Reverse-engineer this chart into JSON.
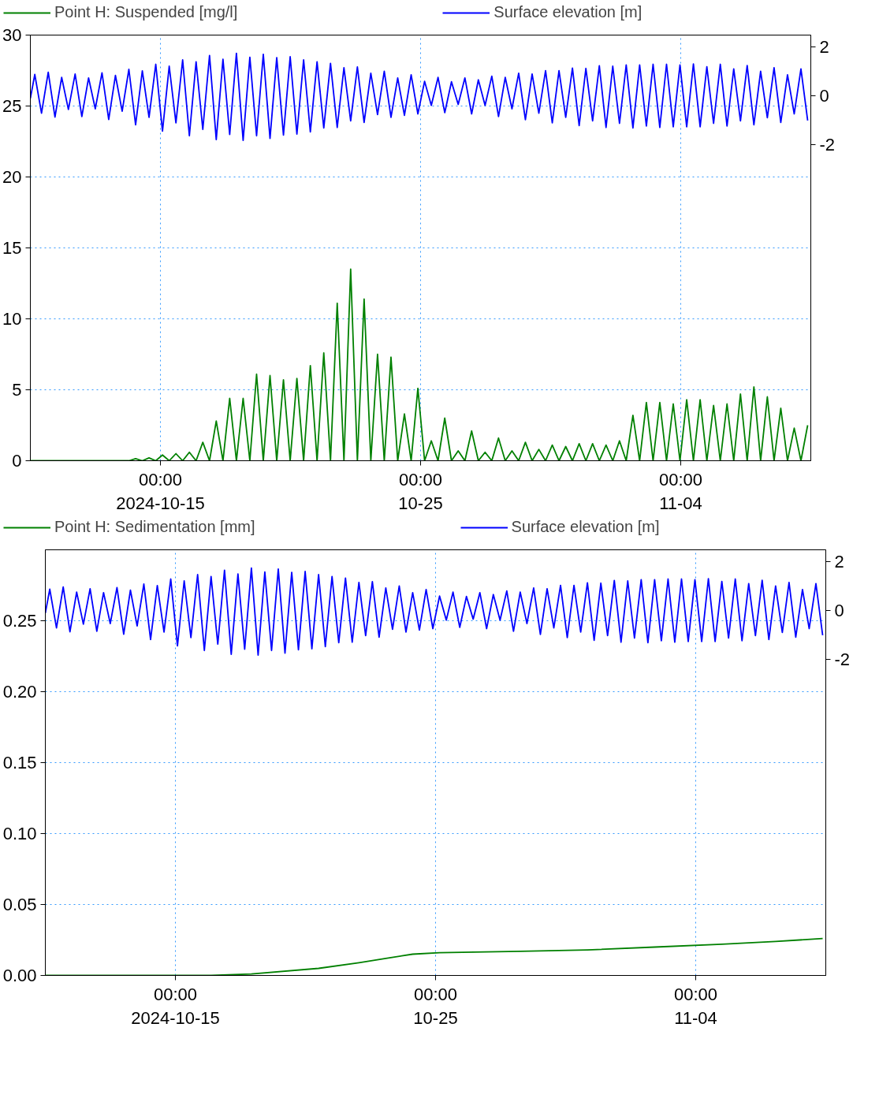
{
  "chart_data": [
    {
      "type": "line",
      "grid": true,
      "legend": "top",
      "x": [
        "2024-10-10T00:00",
        "2024-10-10T04:06",
        "2024-10-10T10:18",
        "2024-10-10T16:30",
        "2024-10-10T22:42",
        "2024-10-11T04:54",
        "2024-10-11T11:06",
        "2024-10-11T17:18",
        "2024-10-11T23:30",
        "2024-10-12T05:42",
        "2024-10-12T11:54",
        "2024-10-12T18:06",
        "2024-10-13T00:18",
        "2024-10-13T06:30",
        "2024-10-13T12:42",
        "2024-10-13T18:54",
        "2024-10-14T01:06",
        "2024-10-14T07:18",
        "2024-10-14T13:30",
        "2024-10-14T19:42",
        "2024-10-15T01:54",
        "2024-10-15T08:06",
        "2024-10-15T14:18",
        "2024-10-15T20:30",
        "2024-10-16T02:42",
        "2024-10-16T08:54",
        "2024-10-16T15:06",
        "2024-10-16T21:18",
        "2024-10-17T03:30",
        "2024-10-17T09:42",
        "2024-10-17T15:54",
        "2024-10-17T22:06",
        "2024-10-18T04:18",
        "2024-10-18T10:30",
        "2024-10-18T16:42",
        "2024-10-18T22:54",
        "2024-10-19T05:06",
        "2024-10-19T11:18",
        "2024-10-19T17:30",
        "2024-10-19T23:42",
        "2024-10-20T05:54",
        "2024-10-20T12:06",
        "2024-10-20T18:18",
        "2024-10-21T00:30",
        "2024-10-21T06:42",
        "2024-10-21T12:54",
        "2024-10-21T19:06",
        "2024-10-22T01:18",
        "2024-10-22T07:30",
        "2024-10-22T13:42",
        "2024-10-22T19:54",
        "2024-10-23T02:06",
        "2024-10-23T08:18",
        "2024-10-23T14:30",
        "2024-10-23T20:42",
        "2024-10-24T02:54",
        "2024-10-24T09:06",
        "2024-10-24T15:18",
        "2024-10-24T21:30",
        "2024-10-25T03:42",
        "2024-10-25T09:54",
        "2024-10-25T16:06",
        "2024-10-25T22:18",
        "2024-10-26T04:30",
        "2024-10-26T10:42",
        "2024-10-26T16:54",
        "2024-10-26T23:06",
        "2024-10-27T05:18",
        "2024-10-27T11:30",
        "2024-10-27T17:42",
        "2024-10-27T23:54",
        "2024-10-28T06:06",
        "2024-10-28T12:18",
        "2024-10-28T18:30",
        "2024-10-29T00:42",
        "2024-10-29T06:54",
        "2024-10-29T13:06",
        "2024-10-29T19:18",
        "2024-10-30T01:30",
        "2024-10-30T07:42",
        "2024-10-30T13:54",
        "2024-10-30T20:06",
        "2024-10-31T02:18",
        "2024-10-31T08:30",
        "2024-10-31T14:42",
        "2024-10-31T20:54",
        "2024-11-01T03:06",
        "2024-11-01T09:18",
        "2024-11-01T15:30",
        "2024-11-01T21:42",
        "2024-11-02T03:54",
        "2024-11-02T10:06",
        "2024-11-02T16:18",
        "2024-11-02T22:30",
        "2024-11-03T04:42",
        "2024-11-03T10:54",
        "2024-11-03T17:06",
        "2024-11-03T23:18",
        "2024-11-04T05:30",
        "2024-11-04T11:42",
        "2024-11-04T17:54",
        "2024-11-05T00:06",
        "2024-11-05T06:18",
        "2024-11-05T12:30",
        "2024-11-05T18:42",
        "2024-11-06T00:54",
        "2024-11-06T07:06",
        "2024-11-06T13:18",
        "2024-11-06T19:30",
        "2024-11-07T01:42",
        "2024-11-07T07:54",
        "2024-11-07T14:06",
        "2024-11-07T20:18",
        "2024-11-08T02:30",
        "2024-11-08T08:42",
        "2024-11-08T14:54",
        "2024-11-08T21:06"
      ],
      "xlim": [
        "2024-10-10",
        "2024-11-09"
      ],
      "xticks": [
        {
          "value": "2024-10-15",
          "label": "00:00\n2024-10-15"
        },
        {
          "value": "2024-10-25",
          "label": "00:00\n10-25"
        },
        {
          "value": "2024-11-04",
          "label": "00:00\n11-04"
        }
      ],
      "ylim": [
        0,
        30
      ],
      "yticks": [
        0,
        5,
        10,
        15,
        20,
        25,
        30
      ],
      "y2lim": [
        -15,
        2.5
      ],
      "y2ticks": [
        -2,
        0,
        2
      ],
      "series": [
        {
          "name": "Point H: Suspended [mg/l]",
          "color": "#008000",
          "values": [
            0,
            0,
            0,
            0,
            0,
            0,
            0,
            0,
            0,
            0,
            0,
            0,
            0,
            0,
            0,
            0,
            0.15,
            0,
            0.2,
            0,
            0.4,
            0,
            0.5,
            0,
            0.6,
            0,
            1.3,
            0,
            2.8,
            0,
            4.4,
            0,
            4.4,
            0,
            6.1,
            0,
            6.0,
            0,
            5.7,
            0,
            5.8,
            0,
            6.7,
            0,
            7.6,
            0,
            11.1,
            0,
            13.5,
            0,
            11.4,
            0,
            7.5,
            0,
            7.3,
            0,
            3.3,
            0,
            5.1,
            0,
            1.4,
            0,
            3.0,
            0,
            0.7,
            0,
            2.1,
            0,
            0.6,
            0,
            1.6,
            0,
            0.7,
            0,
            1.3,
            0,
            0.8,
            0,
            1.1,
            0,
            1.0,
            0,
            1.2,
            0,
            1.2,
            0,
            1.1,
            0,
            1.4,
            0,
            3.2,
            0,
            4.1,
            0,
            4.1,
            0,
            4.0,
            0,
            4.3,
            0,
            4.3,
            0,
            3.9,
            0,
            4.0,
            0,
            4.7,
            0,
            5.2,
            0,
            4.5,
            0,
            3.7,
            0,
            2.3,
            0,
            2.5
          ]
        },
        {
          "name": "Surface elevation [m]",
          "color": "#0000ff",
          "axis": "y2",
          "values": [
            -0.1,
            0.88,
            -0.71,
            0.97,
            -0.87,
            0.76,
            -0.56,
            0.9,
            -0.85,
            0.74,
            -0.53,
            0.95,
            -0.97,
            0.84,
            -0.63,
            1.09,
            -1.19,
            1.03,
            -0.88,
            1.3,
            -1.45,
            1.22,
            -1.11,
            1.48,
            -1.64,
            1.4,
            -1.38,
            1.66,
            -1.8,
            1.51,
            -1.59,
            1.75,
            -1.83,
            1.59,
            -1.64,
            1.71,
            -1.75,
            1.57,
            -1.61,
            1.61,
            -1.57,
            1.48,
            -1.48,
            1.4,
            -1.32,
            1.34,
            -1.3,
            1.16,
            -1.03,
            1.19,
            -1.09,
            0.93,
            -0.77,
            1.01,
            -0.88,
            0.74,
            -0.8,
            0.87,
            -0.74,
            0.6,
            -0.39,
            0.76,
            -0.69,
            0.58,
            -0.35,
            0.74,
            -0.74,
            0.66,
            -0.39,
            0.81,
            -0.85,
            0.76,
            -0.53,
            0.93,
            -0.98,
            0.9,
            -0.71,
            1.04,
            -1.11,
            1.04,
            -0.88,
            1.14,
            -1.22,
            1.13,
            -1.03,
            1.24,
            -1.3,
            1.22,
            -1.13,
            1.27,
            -1.32,
            1.27,
            -1.24,
            1.3,
            -1.3,
            1.3,
            -1.27,
            1.27,
            -1.27,
            1.31,
            -1.27,
            1.2,
            -1.13,
            1.3,
            -1.24,
            1.11,
            -1.03,
            1.25,
            -1.19,
            1.01,
            -0.9,
            1.16,
            -1.09,
            0.87,
            -0.74,
            1.11,
            -1.01
          ]
        }
      ]
    },
    {
      "type": "line",
      "grid": true,
      "legend": "top",
      "x": [
        "2024-10-10T00:00",
        "2024-10-10T04:06",
        "2024-10-10T10:18",
        "2024-10-10T16:30",
        "2024-10-10T22:42",
        "2024-10-11T04:54",
        "2024-10-11T11:06",
        "2024-10-11T17:18",
        "2024-10-11T23:30",
        "2024-10-12T05:42",
        "2024-10-12T11:54",
        "2024-10-12T18:06",
        "2024-10-13T00:18",
        "2024-10-13T06:30",
        "2024-10-13T12:42",
        "2024-10-13T18:54",
        "2024-10-14T01:06",
        "2024-10-14T07:18",
        "2024-10-14T13:30",
        "2024-10-14T19:42",
        "2024-10-15T01:54",
        "2024-10-15T08:06",
        "2024-10-15T14:18",
        "2024-10-15T20:30",
        "2024-10-16T02:42",
        "2024-10-16T08:54",
        "2024-10-16T15:06",
        "2024-10-16T21:18",
        "2024-10-17T03:30",
        "2024-10-17T09:42",
        "2024-10-17T15:54",
        "2024-10-17T22:06",
        "2024-10-18T04:18",
        "2024-10-18T10:30",
        "2024-10-18T16:42",
        "2024-10-18T22:54",
        "2024-10-19T05:06",
        "2024-10-19T11:18",
        "2024-10-19T17:30",
        "2024-10-19T23:42",
        "2024-10-20T05:54",
        "2024-10-20T12:06",
        "2024-10-20T18:18",
        "2024-10-21T00:30",
        "2024-10-21T06:42",
        "2024-10-21T12:54",
        "2024-10-21T19:06",
        "2024-10-22T01:18",
        "2024-10-22T07:30",
        "2024-10-22T13:42",
        "2024-10-22T19:54",
        "2024-10-23T02:06",
        "2024-10-23T08:18",
        "2024-10-23T14:30",
        "2024-10-23T20:42",
        "2024-10-24T02:54",
        "2024-10-24T09:06",
        "2024-10-24T15:18",
        "2024-10-24T21:30",
        "2024-10-25T03:42",
        "2024-10-25T09:54",
        "2024-10-25T16:06",
        "2024-10-25T22:18",
        "2024-10-26T04:30",
        "2024-10-26T10:42",
        "2024-10-26T16:54",
        "2024-10-26T23:06",
        "2024-10-27T05:18",
        "2024-10-27T11:30",
        "2024-10-27T17:42",
        "2024-10-27T23:54",
        "2024-10-28T06:06",
        "2024-10-28T12:18",
        "2024-10-28T18:30",
        "2024-10-29T00:42",
        "2024-10-29T06:54",
        "2024-10-29T13:06",
        "2024-10-29T19:18",
        "2024-10-30T01:30",
        "2024-10-30T07:42",
        "2024-10-30T13:54",
        "2024-10-30T20:06",
        "2024-10-31T02:18",
        "2024-10-31T08:30",
        "2024-10-31T14:42",
        "2024-10-31T20:54",
        "2024-11-01T03:06",
        "2024-11-01T09:18",
        "2024-11-01T15:30",
        "2024-11-01T21:42",
        "2024-11-02T03:54",
        "2024-11-02T10:06",
        "2024-11-02T16:18",
        "2024-11-02T22:30",
        "2024-11-03T04:42",
        "2024-11-03T10:54",
        "2024-11-03T17:06",
        "2024-11-03T23:18",
        "2024-11-04T05:30",
        "2024-11-04T11:42",
        "2024-11-04T17:54",
        "2024-11-05T00:06",
        "2024-11-05T06:18",
        "2024-11-05T12:30",
        "2024-11-05T18:42",
        "2024-11-06T00:54",
        "2024-11-06T07:06",
        "2024-11-06T13:18",
        "2024-11-06T19:30",
        "2024-11-07T01:42",
        "2024-11-07T07:54",
        "2024-11-07T14:06",
        "2024-11-07T20:18",
        "2024-11-08T02:30",
        "2024-11-08T08:42",
        "2024-11-08T14:54",
        "2024-11-08T21:06"
      ],
      "xlim": [
        "2024-10-10",
        "2024-11-09"
      ],
      "xticks": [
        {
          "value": "2024-10-15",
          "label": "00:00\n2024-10-15"
        },
        {
          "value": "2024-10-25",
          "label": "00:00\n10-25"
        },
        {
          "value": "2024-11-04",
          "label": "00:00\n11-04"
        }
      ],
      "ylim": [
        0,
        0.3
      ],
      "yticks": [
        {
          "value": 0,
          "label": "0.00"
        },
        {
          "value": 0.05,
          "label": "0.05"
        },
        {
          "value": 0.1,
          "label": "0.10"
        },
        {
          "value": 0.15,
          "label": "0.15"
        },
        {
          "value": 0.2,
          "label": "0.20"
        },
        {
          "value": 0.25,
          "label": "0.25"
        }
      ],
      "y2lim": [
        -15,
        2.5
      ],
      "y2ticks": [
        -2,
        0,
        2
      ],
      "series": [
        {
          "name": "Point H: Sedimentation [mm]",
          "color": "#008000",
          "x": [
            "2024-10-10T00:00",
            "2024-10-16T08:54",
            "2024-10-17T22:06",
            "2024-10-20T12:06",
            "2024-10-22T01:18",
            "2024-10-23T02:06",
            "2024-10-24T02:54",
            "2024-10-25T03:42",
            "2024-10-28T06:06",
            "2024-10-30T20:06",
            "2024-11-02T10:06",
            "2024-11-05T00:06",
            "2024-11-07T01:42",
            "2024-11-08T21:06"
          ],
          "values": [
            0,
            0,
            0.001,
            0.005,
            0.009,
            0.012,
            0.015,
            0.016,
            0.017,
            0.018,
            0.02,
            0.022,
            0.024,
            0.026
          ]
        },
        {
          "name": "Surface elevation [m]",
          "color": "#0000ff",
          "axis": "y2",
          "values": [
            -0.1,
            0.88,
            -0.71,
            0.97,
            -0.87,
            0.76,
            -0.56,
            0.9,
            -0.85,
            0.74,
            -0.53,
            0.95,
            -0.97,
            0.84,
            -0.63,
            1.09,
            -1.19,
            1.03,
            -0.88,
            1.3,
            -1.45,
            1.22,
            -1.11,
            1.48,
            -1.64,
            1.4,
            -1.38,
            1.66,
            -1.8,
            1.51,
            -1.59,
            1.75,
            -1.83,
            1.59,
            -1.64,
            1.71,
            -1.75,
            1.57,
            -1.61,
            1.61,
            -1.57,
            1.48,
            -1.48,
            1.4,
            -1.32,
            1.34,
            -1.3,
            1.16,
            -1.03,
            1.19,
            -1.09,
            0.93,
            -0.77,
            1.01,
            -0.88,
            0.74,
            -0.8,
            0.87,
            -0.74,
            0.6,
            -0.39,
            0.76,
            -0.69,
            0.58,
            -0.35,
            0.74,
            -0.74,
            0.66,
            -0.39,
            0.81,
            -0.85,
            0.76,
            -0.53,
            0.93,
            -0.98,
            0.9,
            -0.71,
            1.04,
            -1.11,
            1.04,
            -0.88,
            1.14,
            -1.22,
            1.13,
            -1.03,
            1.24,
            -1.3,
            1.22,
            -1.13,
            1.27,
            -1.32,
            1.27,
            -1.24,
            1.3,
            -1.3,
            1.3,
            -1.27,
            1.27,
            -1.27,
            1.31,
            -1.27,
            1.2,
            -1.13,
            1.3,
            -1.24,
            1.11,
            -1.03,
            1.25,
            -1.19,
            1.01,
            -0.9,
            1.16,
            -1.09,
            0.87,
            -0.74,
            1.11,
            -1.01
          ]
        }
      ]
    }
  ]
}
